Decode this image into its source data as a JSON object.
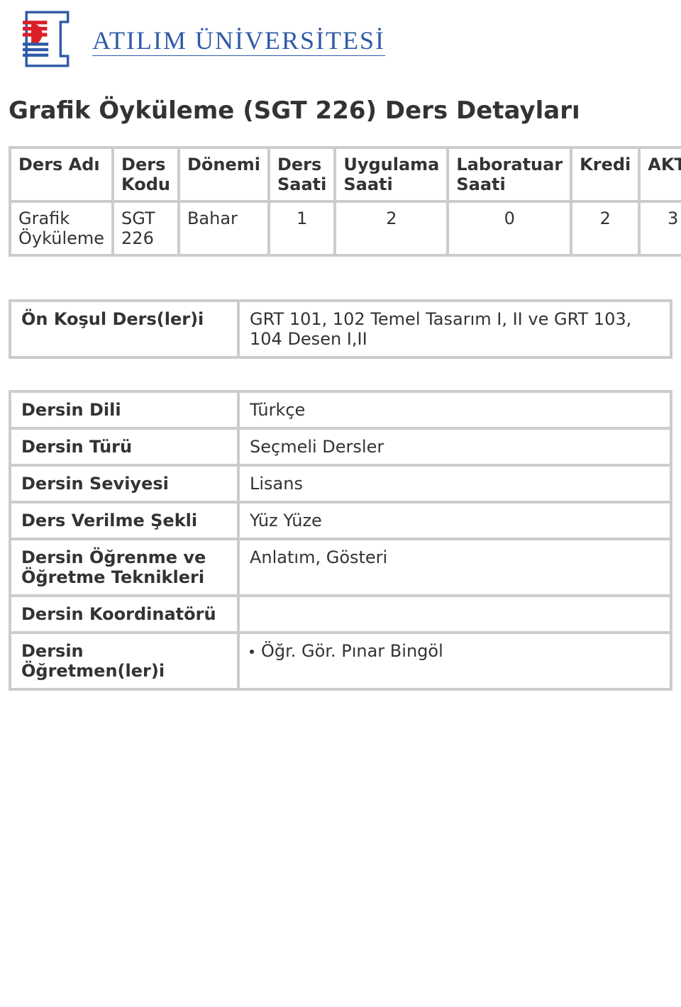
{
  "header": {
    "university_name": "ATILIM ÜNİVERSİTESİ"
  },
  "page": {
    "title": "Grafik Öyküleme (SGT 226) Ders Detayları"
  },
  "course_table": {
    "headers": [
      "Ders Adı",
      "Ders Kodu",
      "Dönemi",
      "Ders Saati",
      "Uygulama Saati",
      "Laboratuar Saati",
      "Kredi",
      "AKTS"
    ],
    "row": {
      "name": "Grafik Öyküleme",
      "code": "SGT 226",
      "term": "Bahar",
      "lecture": "1",
      "practice": "2",
      "lab": "0",
      "credit": "2",
      "akts": "3"
    }
  },
  "prereq": {
    "label": "Ön Koşul Ders(ler)i",
    "value": "GRT 101, 102 Temel Tasarım I, II ve GRT 103, 104 Desen I,II"
  },
  "info": {
    "rows": [
      {
        "label": "Dersin Dili",
        "value": "Türkçe"
      },
      {
        "label": "Dersin Türü",
        "value": "Seçmeli Dersler"
      },
      {
        "label": "Dersin Seviyesi",
        "value": "Lisans"
      },
      {
        "label": "Ders Verilme Şekli",
        "value": "Yüz Yüze"
      },
      {
        "label": "Dersin Öğrenme ve Öğretme Teknikleri",
        "value": "Anlatım, Gösteri"
      },
      {
        "label": "Dersin Koordinatörü",
        "value": ""
      },
      {
        "label": "Dersin Öğretmen(ler)i",
        "value": "Öğr. Gör. Pınar Bingöl",
        "bullet": true
      }
    ]
  },
  "style": {
    "border_color": "#cccccc",
    "text_color": "#333333",
    "accent_color": "#2e5aa8",
    "background": "#ffffff",
    "logo_red": "#d92027",
    "logo_blue": "#2e5aa8"
  }
}
